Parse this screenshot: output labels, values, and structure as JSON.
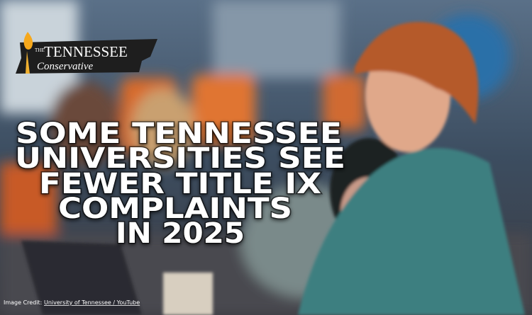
{
  "logo": {
    "small": "THE",
    "name": "TENNESSEE",
    "tagline": "Conservative"
  },
  "headline": {
    "lines": [
      "SOME TENNESSEE",
      "UNIVERSITIES SEE",
      "FEWER TITLE IX",
      "COMPLAINTS",
      "IN 2025"
    ]
  },
  "credit": {
    "label": "Image Credit:",
    "source": "University of Tennessee / YouTube"
  }
}
